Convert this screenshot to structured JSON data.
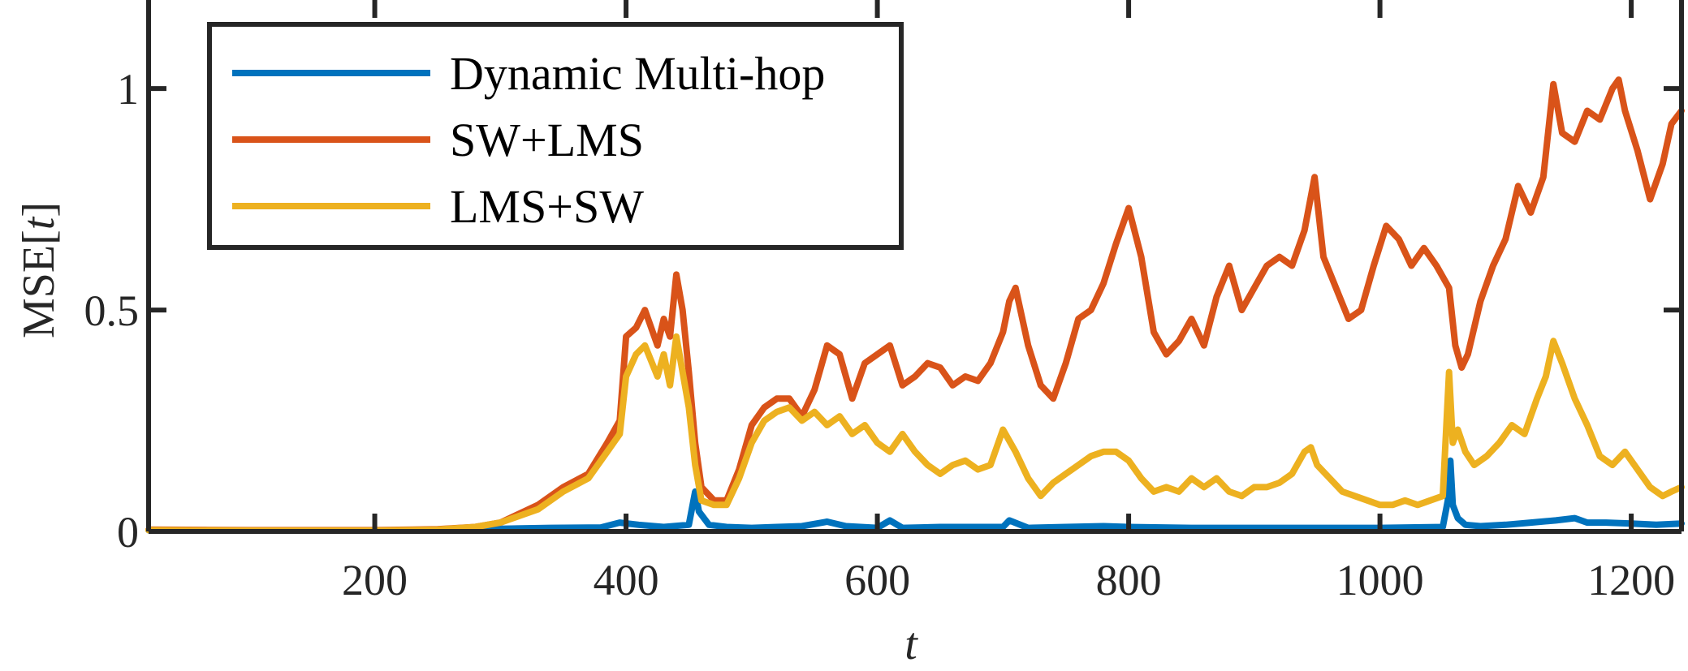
{
  "chart_data": {
    "type": "line",
    "xlabel": "t",
    "ylabel_prefix": "MSE[",
    "ylabel_var": "t",
    "ylabel_suffix": "]",
    "xlim": [
      20,
      1240
    ],
    "ylim": [
      0,
      1.2
    ],
    "x_ticks": [
      200,
      400,
      600,
      800,
      1000,
      1200
    ],
    "x_tick_labels": [
      "200",
      "400",
      "600",
      "800",
      "1000",
      "1200"
    ],
    "y_ticks": [
      0,
      0.5,
      1
    ],
    "y_tick_labels": [
      "0",
      "0.5",
      "1"
    ],
    "grid": false,
    "legend_position": "top-left",
    "series": [
      {
        "name": "Dynamic Multi-hop",
        "color": "#0072BD",
        "points": [
          [
            20,
            0.003
          ],
          [
            100,
            0.002
          ],
          [
            200,
            0.002
          ],
          [
            260,
            0.003
          ],
          [
            300,
            0.006
          ],
          [
            340,
            0.008
          ],
          [
            380,
            0.009
          ],
          [
            395,
            0.02
          ],
          [
            410,
            0.015
          ],
          [
            430,
            0.01
          ],
          [
            450,
            0.015
          ],
          [
            455,
            0.09
          ],
          [
            458,
            0.045
          ],
          [
            462,
            0.03
          ],
          [
            466,
            0.015
          ],
          [
            480,
            0.01
          ],
          [
            500,
            0.008
          ],
          [
            520,
            0.01
          ],
          [
            540,
            0.012
          ],
          [
            560,
            0.022
          ],
          [
            575,
            0.012
          ],
          [
            600,
            0.008
          ],
          [
            610,
            0.025
          ],
          [
            620,
            0.008
          ],
          [
            650,
            0.01
          ],
          [
            700,
            0.01
          ],
          [
            705,
            0.025
          ],
          [
            720,
            0.008
          ],
          [
            750,
            0.01
          ],
          [
            780,
            0.012
          ],
          [
            800,
            0.01
          ],
          [
            850,
            0.008
          ],
          [
            900,
            0.008
          ],
          [
            950,
            0.008
          ],
          [
            1000,
            0.008
          ],
          [
            1050,
            0.01
          ],
          [
            1054,
            0.07
          ],
          [
            1056,
            0.16
          ],
          [
            1058,
            0.06
          ],
          [
            1062,
            0.03
          ],
          [
            1068,
            0.015
          ],
          [
            1080,
            0.012
          ],
          [
            1100,
            0.015
          ],
          [
            1120,
            0.02
          ],
          [
            1140,
            0.025
          ],
          [
            1155,
            0.03
          ],
          [
            1165,
            0.02
          ],
          [
            1180,
            0.02
          ],
          [
            1200,
            0.018
          ],
          [
            1220,
            0.015
          ],
          [
            1240,
            0.018
          ]
        ]
      },
      {
        "name": "SW+LMS",
        "color": "#D95319",
        "points": [
          [
            20,
            0.004
          ],
          [
            100,
            0.003
          ],
          [
            200,
            0.003
          ],
          [
            250,
            0.005
          ],
          [
            280,
            0.01
          ],
          [
            300,
            0.02
          ],
          [
            330,
            0.06
          ],
          [
            350,
            0.1
          ],
          [
            370,
            0.13
          ],
          [
            385,
            0.2
          ],
          [
            395,
            0.25
          ],
          [
            400,
            0.44
          ],
          [
            408,
            0.46
          ],
          [
            415,
            0.5
          ],
          [
            425,
            0.42
          ],
          [
            430,
            0.48
          ],
          [
            435,
            0.44
          ],
          [
            440,
            0.58
          ],
          [
            445,
            0.5
          ],
          [
            450,
            0.36
          ],
          [
            455,
            0.2
          ],
          [
            460,
            0.1
          ],
          [
            470,
            0.07
          ],
          [
            480,
            0.07
          ],
          [
            490,
            0.14
          ],
          [
            500,
            0.24
          ],
          [
            510,
            0.28
          ],
          [
            520,
            0.3
          ],
          [
            530,
            0.3
          ],
          [
            540,
            0.26
          ],
          [
            550,
            0.32
          ],
          [
            560,
            0.42
          ],
          [
            570,
            0.4
          ],
          [
            580,
            0.3
          ],
          [
            590,
            0.38
          ],
          [
            600,
            0.4
          ],
          [
            610,
            0.42
          ],
          [
            620,
            0.33
          ],
          [
            630,
            0.35
          ],
          [
            640,
            0.38
          ],
          [
            650,
            0.37
          ],
          [
            660,
            0.33
          ],
          [
            670,
            0.35
          ],
          [
            680,
            0.34
          ],
          [
            690,
            0.38
          ],
          [
            700,
            0.45
          ],
          [
            705,
            0.52
          ],
          [
            710,
            0.55
          ],
          [
            720,
            0.42
          ],
          [
            730,
            0.33
          ],
          [
            740,
            0.3
          ],
          [
            750,
            0.38
          ],
          [
            760,
            0.48
          ],
          [
            770,
            0.5
          ],
          [
            780,
            0.56
          ],
          [
            790,
            0.65
          ],
          [
            800,
            0.73
          ],
          [
            810,
            0.62
          ],
          [
            820,
            0.45
          ],
          [
            830,
            0.4
          ],
          [
            840,
            0.43
          ],
          [
            850,
            0.48
          ],
          [
            860,
            0.42
          ],
          [
            870,
            0.53
          ],
          [
            880,
            0.6
          ],
          [
            890,
            0.5
          ],
          [
            900,
            0.55
          ],
          [
            910,
            0.6
          ],
          [
            920,
            0.62
          ],
          [
            930,
            0.6
          ],
          [
            940,
            0.68
          ],
          [
            948,
            0.8
          ],
          [
            955,
            0.62
          ],
          [
            965,
            0.55
          ],
          [
            975,
            0.48
          ],
          [
            985,
            0.5
          ],
          [
            995,
            0.6
          ],
          [
            1005,
            0.69
          ],
          [
            1015,
            0.66
          ],
          [
            1025,
            0.6
          ],
          [
            1035,
            0.64
          ],
          [
            1045,
            0.6
          ],
          [
            1055,
            0.55
          ],
          [
            1060,
            0.42
          ],
          [
            1065,
            0.37
          ],
          [
            1070,
            0.4
          ],
          [
            1080,
            0.52
          ],
          [
            1090,
            0.6
          ],
          [
            1100,
            0.66
          ],
          [
            1110,
            0.78
          ],
          [
            1120,
            0.72
          ],
          [
            1130,
            0.8
          ],
          [
            1138,
            1.01
          ],
          [
            1145,
            0.9
          ],
          [
            1155,
            0.88
          ],
          [
            1165,
            0.95
          ],
          [
            1175,
            0.93
          ],
          [
            1185,
            1.0
          ],
          [
            1190,
            1.02
          ],
          [
            1195,
            0.95
          ],
          [
            1205,
            0.86
          ],
          [
            1215,
            0.75
          ],
          [
            1225,
            0.83
          ],
          [
            1232,
            0.92
          ],
          [
            1240,
            0.95
          ]
        ]
      },
      {
        "name": "LMS+SW",
        "color": "#EDB120",
        "points": [
          [
            20,
            0.003
          ],
          [
            100,
            0.002
          ],
          [
            200,
            0.002
          ],
          [
            250,
            0.004
          ],
          [
            280,
            0.01
          ],
          [
            300,
            0.02
          ],
          [
            330,
            0.05
          ],
          [
            350,
            0.09
          ],
          [
            370,
            0.12
          ],
          [
            385,
            0.18
          ],
          [
            395,
            0.22
          ],
          [
            400,
            0.35
          ],
          [
            408,
            0.4
          ],
          [
            415,
            0.42
          ],
          [
            425,
            0.35
          ],
          [
            430,
            0.4
          ],
          [
            435,
            0.33
          ],
          [
            440,
            0.44
          ],
          [
            445,
            0.36
          ],
          [
            450,
            0.28
          ],
          [
            455,
            0.15
          ],
          [
            460,
            0.07
          ],
          [
            470,
            0.06
          ],
          [
            480,
            0.06
          ],
          [
            490,
            0.12
          ],
          [
            500,
            0.2
          ],
          [
            510,
            0.25
          ],
          [
            520,
            0.27
          ],
          [
            530,
            0.28
          ],
          [
            540,
            0.25
          ],
          [
            550,
            0.27
          ],
          [
            560,
            0.24
          ],
          [
            570,
            0.26
          ],
          [
            580,
            0.22
          ],
          [
            590,
            0.24
          ],
          [
            600,
            0.2
          ],
          [
            610,
            0.18
          ],
          [
            620,
            0.22
          ],
          [
            630,
            0.18
          ],
          [
            640,
            0.15
          ],
          [
            650,
            0.13
          ],
          [
            660,
            0.15
          ],
          [
            670,
            0.16
          ],
          [
            680,
            0.14
          ],
          [
            690,
            0.15
          ],
          [
            700,
            0.23
          ],
          [
            710,
            0.18
          ],
          [
            720,
            0.12
          ],
          [
            730,
            0.08
          ],
          [
            740,
            0.11
          ],
          [
            750,
            0.13
          ],
          [
            760,
            0.15
          ],
          [
            770,
            0.17
          ],
          [
            780,
            0.18
          ],
          [
            790,
            0.18
          ],
          [
            800,
            0.16
          ],
          [
            810,
            0.12
          ],
          [
            820,
            0.09
          ],
          [
            830,
            0.1
          ],
          [
            840,
            0.09
          ],
          [
            850,
            0.12
          ],
          [
            860,
            0.1
          ],
          [
            870,
            0.12
          ],
          [
            880,
            0.09
          ],
          [
            890,
            0.08
          ],
          [
            900,
            0.1
          ],
          [
            910,
            0.1
          ],
          [
            920,
            0.11
          ],
          [
            930,
            0.13
          ],
          [
            940,
            0.18
          ],
          [
            945,
            0.19
          ],
          [
            950,
            0.15
          ],
          [
            960,
            0.12
          ],
          [
            970,
            0.09
          ],
          [
            980,
            0.08
          ],
          [
            990,
            0.07
          ],
          [
            1000,
            0.06
          ],
          [
            1010,
            0.06
          ],
          [
            1020,
            0.07
          ],
          [
            1030,
            0.06
          ],
          [
            1040,
            0.07
          ],
          [
            1050,
            0.08
          ],
          [
            1055,
            0.36
          ],
          [
            1058,
            0.2
          ],
          [
            1062,
            0.23
          ],
          [
            1068,
            0.18
          ],
          [
            1075,
            0.15
          ],
          [
            1085,
            0.17
          ],
          [
            1095,
            0.2
          ],
          [
            1105,
            0.24
          ],
          [
            1115,
            0.22
          ],
          [
            1125,
            0.3
          ],
          [
            1132,
            0.35
          ],
          [
            1138,
            0.43
          ],
          [
            1145,
            0.38
          ],
          [
            1155,
            0.3
          ],
          [
            1165,
            0.24
          ],
          [
            1175,
            0.17
          ],
          [
            1185,
            0.15
          ],
          [
            1195,
            0.18
          ],
          [
            1205,
            0.14
          ],
          [
            1215,
            0.1
          ],
          [
            1225,
            0.08
          ],
          [
            1232,
            0.09
          ],
          [
            1240,
            0.1
          ]
        ]
      }
    ]
  }
}
